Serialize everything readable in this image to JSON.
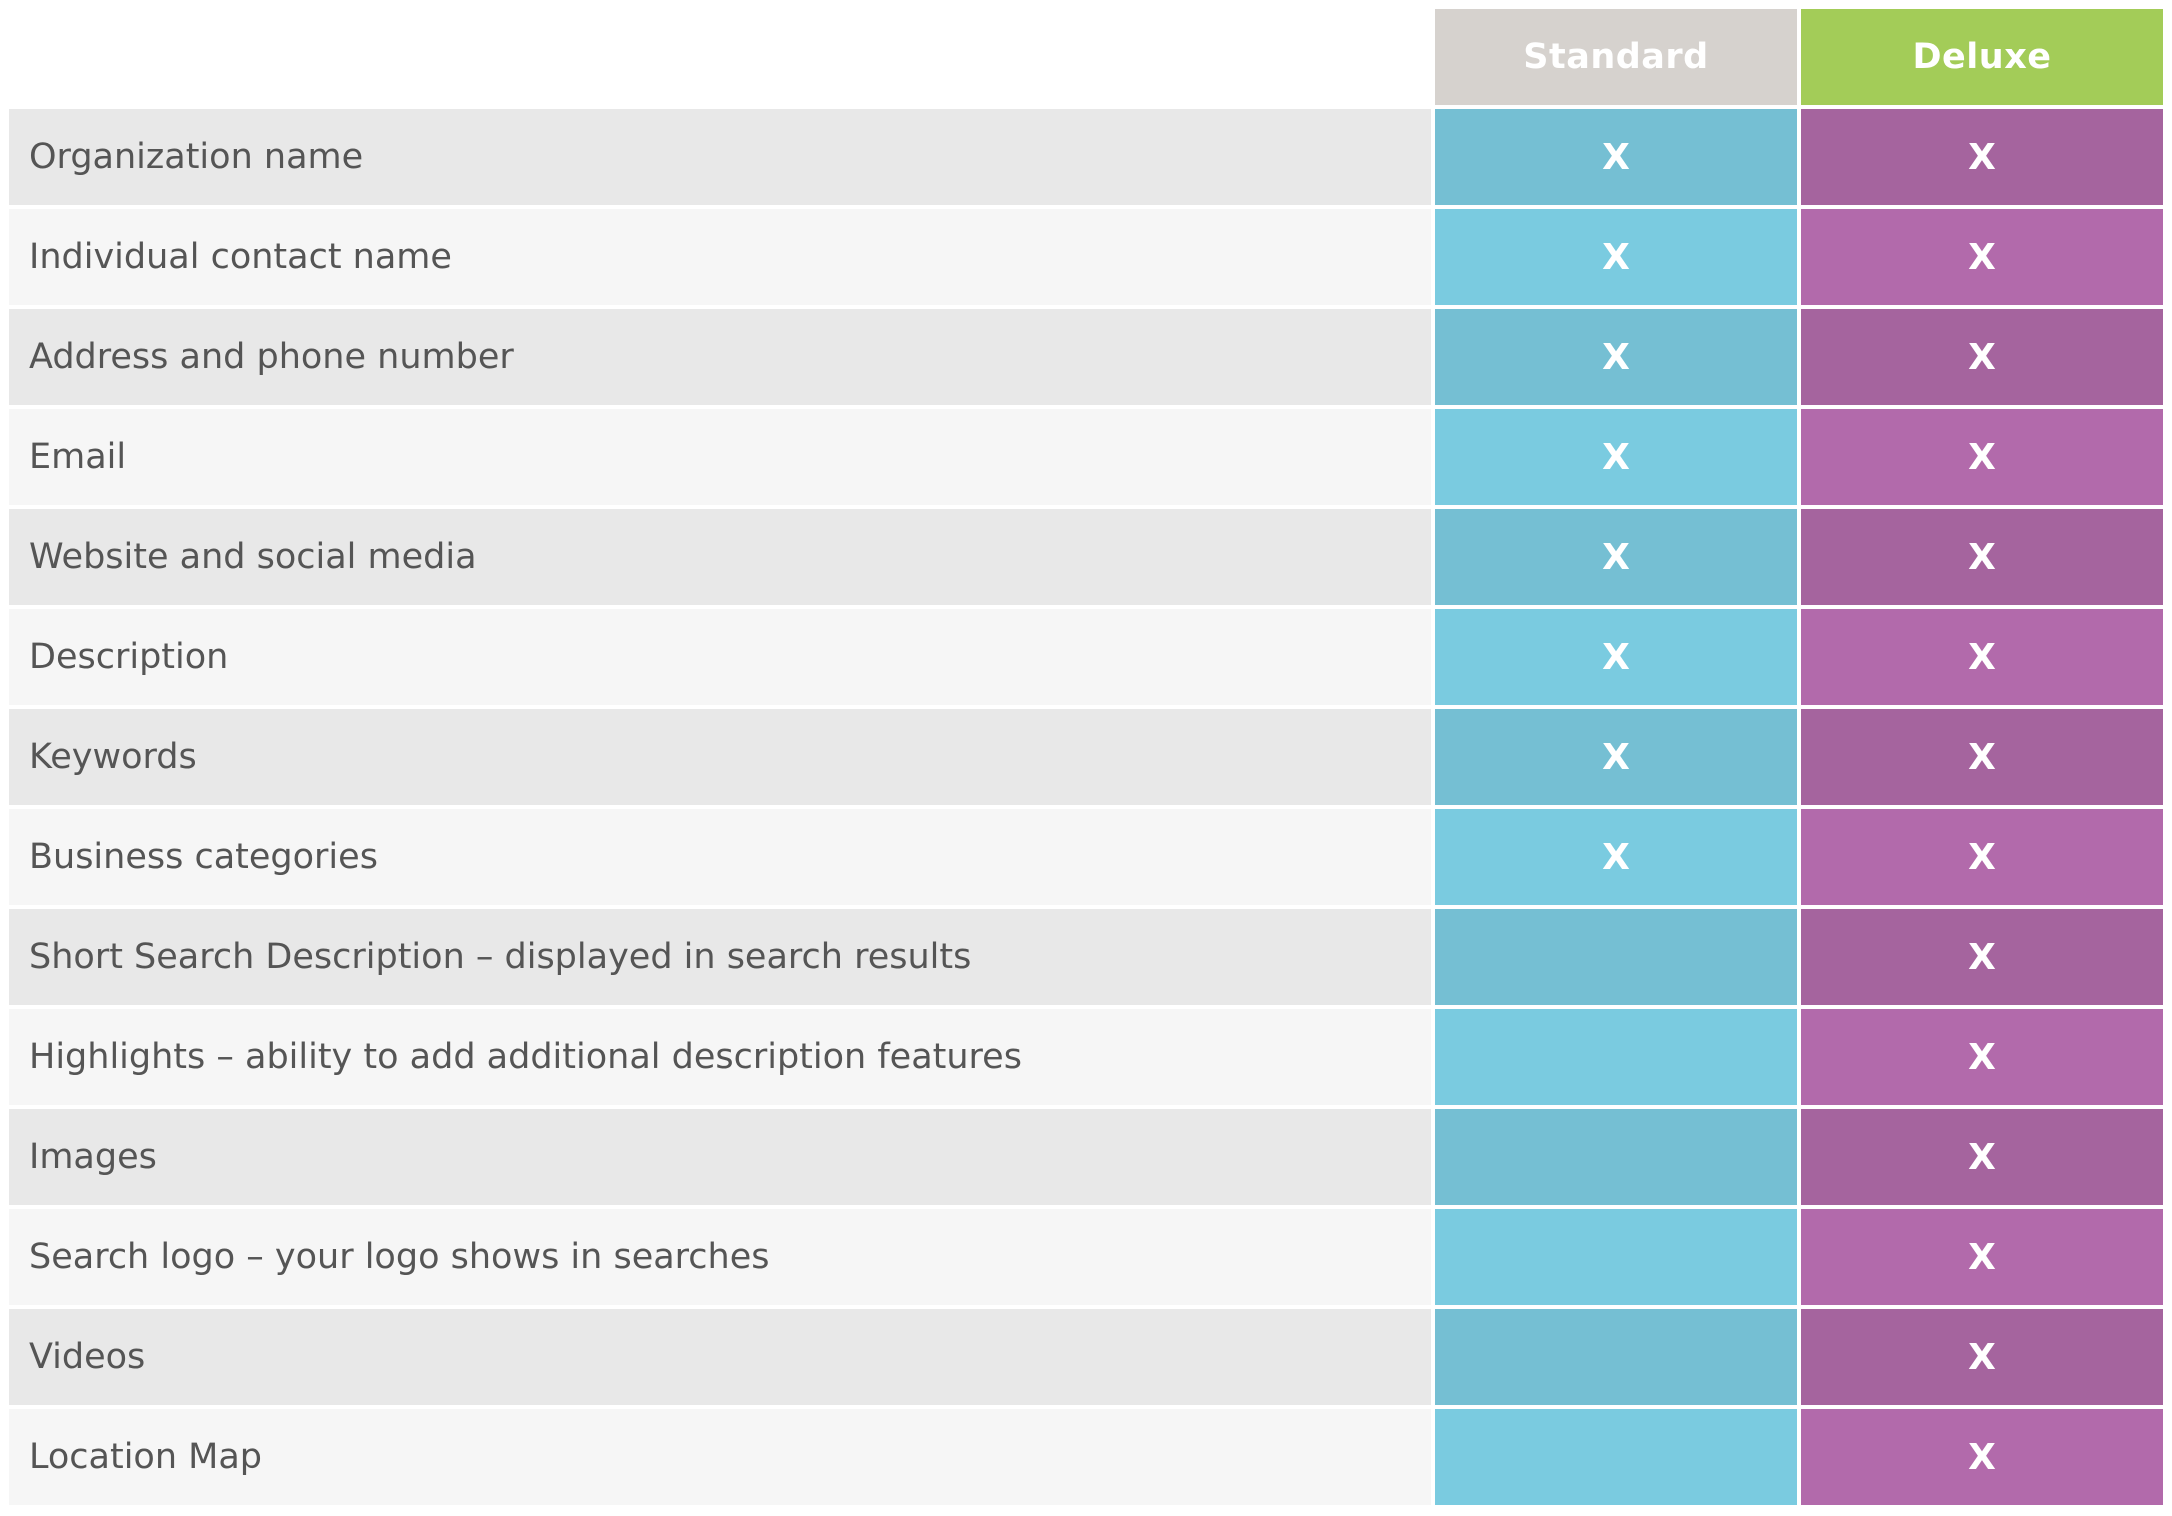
{
  "colors": {
    "standard_header": "#d6d2ce",
    "deluxe_header": "#a3cc58",
    "feature_row_dark": "#e8e8e8",
    "feature_row_light": "#f6f6f6",
    "standard_dark": "#75bfd3",
    "standard_light": "#7acbe0",
    "deluxe_dark": "#a5649e",
    "deluxe_light": "#b26aab",
    "feature_text": "#555555",
    "mark_text": "#ffffff"
  },
  "columns": {
    "standard": "Standard",
    "deluxe": "Deluxe"
  },
  "rows": [
    {
      "feature": "Organization name",
      "standard": "X",
      "deluxe": "X"
    },
    {
      "feature": "Individual contact name",
      "standard": "X",
      "deluxe": "X"
    },
    {
      "feature": "Address and phone number",
      "standard": "X",
      "deluxe": "X"
    },
    {
      "feature": "Email",
      "standard": "X",
      "deluxe": "X"
    },
    {
      "feature": "Website and social media",
      "standard": "X",
      "deluxe": "X"
    },
    {
      "feature": "Description",
      "standard": "X",
      "deluxe": "X"
    },
    {
      "feature": "Keywords",
      "standard": "X",
      "deluxe": "X"
    },
    {
      "feature": "Business categories",
      "standard": "X",
      "deluxe": "X"
    },
    {
      "feature": "Short Search Description – displayed in search results",
      "standard": "",
      "deluxe": "X"
    },
    {
      "feature": "Highlights – ability to add additional description features",
      "standard": "",
      "deluxe": "X"
    },
    {
      "feature": "Images",
      "standard": "",
      "deluxe": "X"
    },
    {
      "feature": "Search logo – your logo shows in searches",
      "standard": "",
      "deluxe": "X"
    },
    {
      "feature": "Videos",
      "standard": "",
      "deluxe": "X"
    },
    {
      "feature": "Location Map",
      "standard": "",
      "deluxe": "X"
    }
  ]
}
